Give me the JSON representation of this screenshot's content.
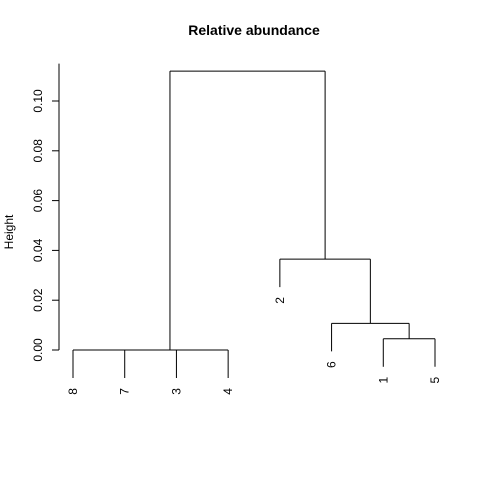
{
  "chart_data": {
    "type": "dendrogram",
    "title": "Relative abundance",
    "xlabel": "",
    "ylabel": "Height",
    "ylim": [
      0,
      0.115
    ],
    "yticks": [
      0.0,
      0.02,
      0.04,
      0.06,
      0.08,
      0.1
    ],
    "ytick_labels": [
      "0.00",
      "0.02",
      "0.04",
      "0.06",
      "0.08",
      "0.10"
    ],
    "leaf_order": [
      "8",
      "7",
      "3",
      "4",
      "2",
      "6",
      "1",
      "5"
    ],
    "merges": [
      {
        "left": "7",
        "right": "3",
        "height": 0.0
      },
      {
        "left": "8",
        "right": "7-3",
        "height": 0.0
      },
      {
        "left": "8-7-3",
        "right": "4",
        "height": 0.0
      },
      {
        "left": "1",
        "right": "5",
        "height": 0.0045
      },
      {
        "left": "6",
        "right": "1-5",
        "height": 0.0107
      },
      {
        "left": "2",
        "right": "6-1-5",
        "height": 0.0365
      },
      {
        "left": "8-7-3-4",
        "right": "2-6-1-5",
        "height": 0.112
      }
    ]
  }
}
